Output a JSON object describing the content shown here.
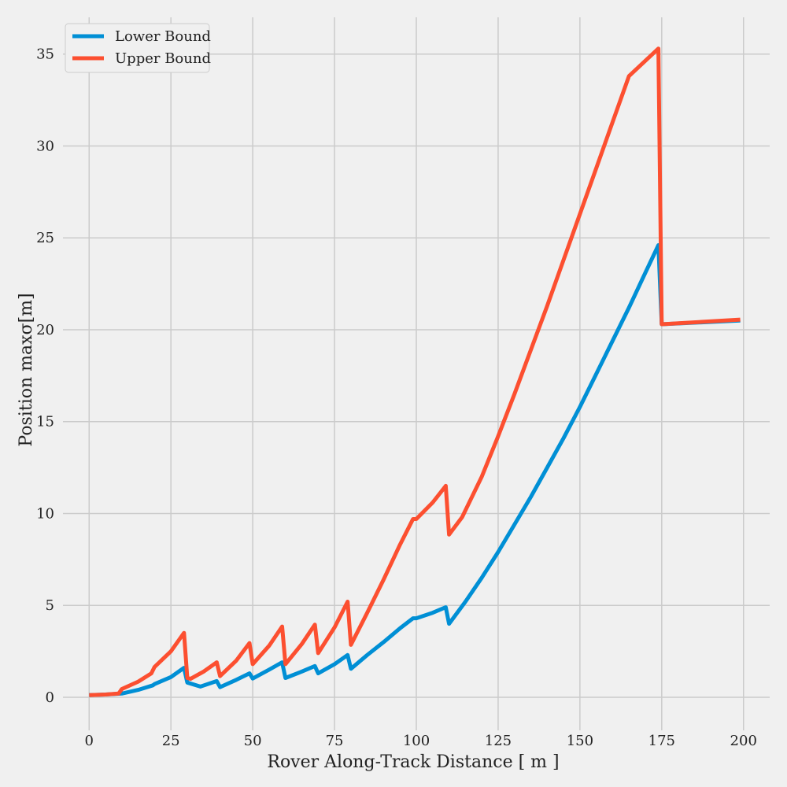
{
  "chart_data": {
    "type": "line",
    "xlabel": "Rover Along-Track Distance [ m ]",
    "ylabel": "Position maxσ[m]",
    "xlim": [
      -8,
      208
    ],
    "ylim": [
      -1.8,
      37
    ],
    "xticks": [
      0,
      25,
      50,
      75,
      100,
      125,
      150,
      175,
      200
    ],
    "yticks": [
      0,
      5,
      10,
      15,
      20,
      25,
      30,
      35
    ],
    "grid": true,
    "legend_position": "top-left",
    "series": [
      {
        "name": "Lower Bound",
        "color": "#008fd5",
        "points": [
          [
            0,
            0.12
          ],
          [
            5,
            0.15
          ],
          [
            10,
            0.2
          ],
          [
            15,
            0.4
          ],
          [
            19.5,
            0.65
          ],
          [
            20,
            0.72
          ],
          [
            25,
            1.1
          ],
          [
            29,
            1.6
          ],
          [
            30,
            0.8
          ],
          [
            34,
            0.58
          ],
          [
            39,
            0.88
          ],
          [
            40,
            0.55
          ],
          [
            45,
            0.95
          ],
          [
            49,
            1.3
          ],
          [
            50,
            1.02
          ],
          [
            55,
            1.5
          ],
          [
            59,
            1.9
          ],
          [
            60,
            1.05
          ],
          [
            65,
            1.4
          ],
          [
            69,
            1.7
          ],
          [
            70,
            1.3
          ],
          [
            75,
            1.8
          ],
          [
            79,
            2.3
          ],
          [
            80,
            1.55
          ],
          [
            85,
            2.3
          ],
          [
            90,
            3.0
          ],
          [
            95,
            3.75
          ],
          [
            99,
            4.3
          ],
          [
            100,
            4.3
          ],
          [
            105,
            4.6
          ],
          [
            109,
            4.9
          ],
          [
            110,
            4.0
          ],
          [
            115,
            5.2
          ],
          [
            120,
            6.5
          ],
          [
            125,
            7.9
          ],
          [
            130,
            9.4
          ],
          [
            135,
            10.9
          ],
          [
            140,
            12.5
          ],
          [
            145,
            14.1
          ],
          [
            150,
            15.8
          ],
          [
            155,
            17.6
          ],
          [
            160,
            19.4
          ],
          [
            165,
            21.2
          ],
          [
            170,
            23.1
          ],
          [
            174,
            24.6
          ],
          [
            175,
            20.3
          ],
          [
            199,
            20.5
          ]
        ]
      },
      {
        "name": "Upper Bound",
        "color": "#fc4f30",
        "points": [
          [
            0,
            0.12
          ],
          [
            5,
            0.15
          ],
          [
            9,
            0.2
          ],
          [
            10,
            0.45
          ],
          [
            15,
            0.85
          ],
          [
            19,
            1.3
          ],
          [
            20,
            1.65
          ],
          [
            25,
            2.5
          ],
          [
            29,
            3.5
          ],
          [
            30,
            1.05
          ],
          [
            31,
            1.0
          ],
          [
            35,
            1.4
          ],
          [
            39,
            1.9
          ],
          [
            40,
            1.15
          ],
          [
            45,
            2.0
          ],
          [
            49,
            2.95
          ],
          [
            50,
            1.8
          ],
          [
            55,
            2.8
          ],
          [
            59,
            3.85
          ],
          [
            60,
            1.8
          ],
          [
            65,
            2.9
          ],
          [
            69,
            3.95
          ],
          [
            70,
            2.4
          ],
          [
            75,
            3.8
          ],
          [
            79,
            5.2
          ],
          [
            80,
            2.85
          ],
          [
            85,
            4.6
          ],
          [
            90,
            6.4
          ],
          [
            95,
            8.3
          ],
          [
            99,
            9.7
          ],
          [
            100,
            9.7
          ],
          [
            105,
            10.6
          ],
          [
            109,
            11.5
          ],
          [
            110,
            8.85
          ],
          [
            114,
            9.8
          ],
          [
            120,
            12.0
          ],
          [
            125,
            14.2
          ],
          [
            130,
            16.5
          ],
          [
            135,
            18.9
          ],
          [
            140,
            21.3
          ],
          [
            145,
            23.8
          ],
          [
            150,
            26.3
          ],
          [
            155,
            28.8
          ],
          [
            160,
            31.3
          ],
          [
            165,
            33.8
          ],
          [
            174,
            35.3
          ],
          [
            175,
            20.3
          ],
          [
            199,
            20.55
          ]
        ]
      }
    ]
  }
}
